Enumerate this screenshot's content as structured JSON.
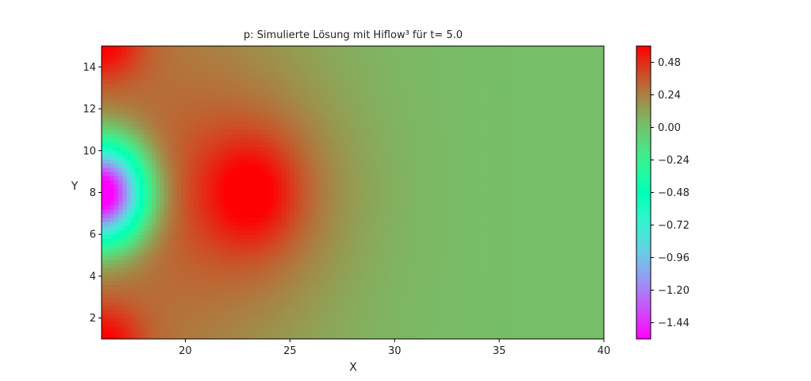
{
  "chart_data": {
    "type": "heatmap",
    "title": "p: Simulierte Lösung mit Hiflow³ für t= 5.0",
    "xlabel": "X",
    "ylabel": "Y",
    "xlim": [
      16,
      40
    ],
    "ylim": [
      1,
      15
    ],
    "xticks": [
      20,
      25,
      30,
      35,
      40
    ],
    "yticks": [
      2,
      4,
      6,
      8,
      10,
      12,
      14
    ],
    "colormap": "rainbow",
    "colorbar": {
      "range": [
        -1.56,
        0.6
      ],
      "ticks": [
        0.48,
        0.24,
        0.0,
        -0.24,
        -0.48,
        -0.72,
        -0.96,
        -1.2,
        -1.44
      ],
      "tick_labels": [
        "0.48",
        "0.24",
        "0.00",
        "−0.24",
        "−0.48",
        "−0.72",
        "−0.96",
        "−1.20",
        "−1.44"
      ]
    },
    "features": [
      {
        "kind": "minimum",
        "x": 16.0,
        "y": 8.0,
        "value": -1.5
      },
      {
        "kind": "maximum",
        "x": 23.2,
        "y": 8.0,
        "value": 0.55
      },
      {
        "kind": "maximum",
        "x": 16.0,
        "y": 15.0,
        "value": 0.58
      },
      {
        "kind": "maximum",
        "x": 16.0,
        "y": 1.0,
        "value": 0.58
      },
      {
        "kind": "far-field",
        "x": 40.0,
        "y": 8.0,
        "value": 0.02
      }
    ]
  }
}
